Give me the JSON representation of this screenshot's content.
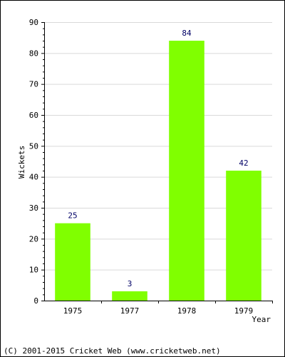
{
  "chart_data": {
    "type": "bar",
    "categories": [
      "1975",
      "1977",
      "1978",
      "1979"
    ],
    "values": [
      25,
      3,
      84,
      42
    ],
    "data_labels": [
      "25",
      "3",
      "84",
      "42"
    ],
    "xlabel": "Year",
    "ylabel": "Wickets",
    "ylim": [
      0,
      90
    ],
    "yticks": [
      0,
      10,
      20,
      30,
      40,
      50,
      60,
      70,
      80,
      90
    ],
    "grid": true,
    "colors": {
      "bar": "#80ff00",
      "data_label": "#000066",
      "grid": "#d9d9d9",
      "axis": "#000000"
    }
  },
  "footer": {
    "text": "(C) 2001-2015 Cricket Web (www.cricketweb.net)"
  }
}
